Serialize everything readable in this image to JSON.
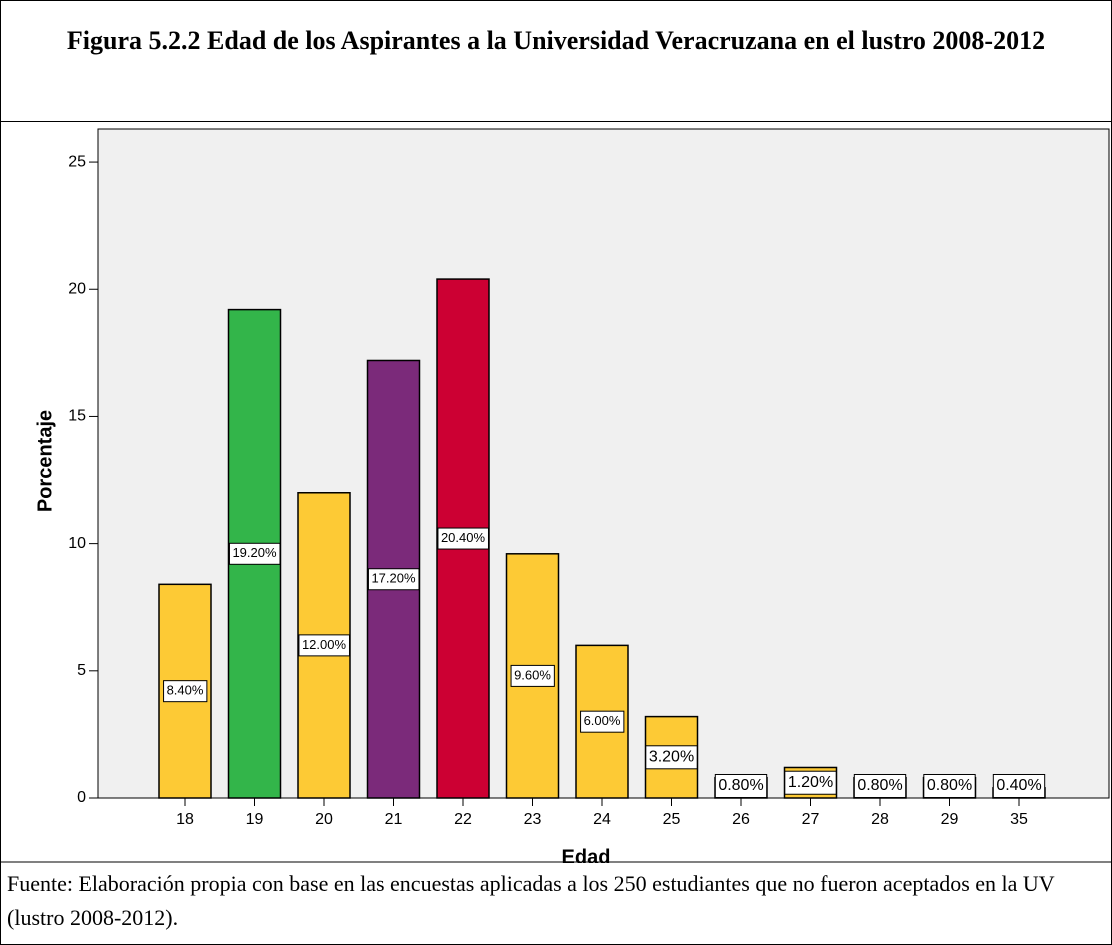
{
  "chart_data": {
    "type": "bar",
    "title": "Figura 5.2.2 Edad de los Aspirantes a la Universidad Veracruzana en el lustro 2008-2012",
    "x_label": "Edad",
    "y_label": "Porcentaje",
    "categories": [
      "18",
      "19",
      "20",
      "21",
      "22",
      "23",
      "24",
      "25",
      "26",
      "27",
      "28",
      "29",
      "35"
    ],
    "values": [
      8.4,
      19.2,
      12,
      17.2,
      20.4,
      9.6,
      6,
      3.2,
      0.8,
      1.2,
      0.8,
      0.8,
      0.4
    ],
    "value_labels": [
      "8.40%",
      "19.20%",
      "12.00%",
      "17.20%",
      "20.40%",
      "9.60%",
      "6.00%",
      "3.20%",
      "0.80%",
      "1.20%",
      "0.80%",
      "0.80%",
      "0.40%"
    ],
    "colors": [
      "#fdca35",
      "#33b54a",
      "#fdca35",
      "#7b2a7a",
      "#cc0033",
      "#fdca35",
      "#fdca35",
      "#fdca35",
      "#fdca35",
      "#fdca35",
      "#fdca35",
      "#fdca35",
      "#fdca35"
    ],
    "ylim": [
      0,
      26.3
    ],
    "yticks": [
      0,
      5,
      10,
      15,
      20,
      25
    ],
    "source": "Fuente: Elaboración propia con base en las encuestas aplicadas a los 250 estudiantes que no fueron aceptados en la UV (lustro 2008-2012)."
  }
}
